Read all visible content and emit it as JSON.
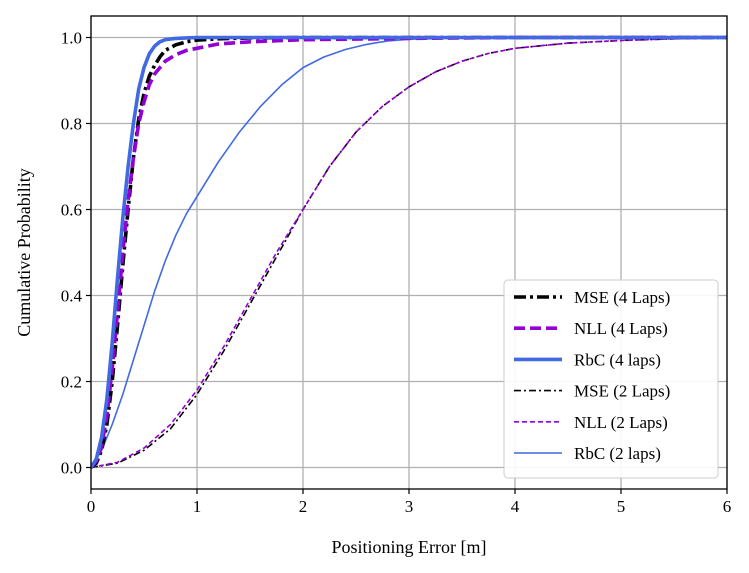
{
  "chart_data": {
    "type": "line",
    "xlabel": "Positioning Error [m]",
    "ylabel": "Cumulative Probability",
    "xlim": [
      0,
      6
    ],
    "ylim": [
      -0.05,
      1.05
    ],
    "x_ticks": [
      "0",
      "1",
      "2",
      "3",
      "4",
      "5",
      "6"
    ],
    "y_ticks": [
      "0.0",
      "0.2",
      "0.4",
      "0.6",
      "0.8",
      "1.0"
    ],
    "x_tick_values": [
      0,
      1,
      2,
      3,
      4,
      5,
      6
    ],
    "y_tick_values": [
      0,
      0.2,
      0.4,
      0.6,
      0.8,
      1.0
    ],
    "grid": true,
    "legend_position": "lower-right",
    "series": [
      {
        "name": "MSE (4 Laps)",
        "color": "#000000",
        "style": "dashdot",
        "weight": "thick",
        "x": [
          0,
          0.05,
          0.1,
          0.15,
          0.2,
          0.25,
          0.3,
          0.35,
          0.4,
          0.45,
          0.5,
          0.55,
          0.6,
          0.65,
          0.7,
          0.8,
          0.9,
          1.0,
          1.2,
          1.5,
          2.0,
          3.0,
          6.0
        ],
        "y": [
          0,
          0.01,
          0.04,
          0.1,
          0.2,
          0.33,
          0.47,
          0.6,
          0.72,
          0.81,
          0.87,
          0.91,
          0.935,
          0.955,
          0.97,
          0.983,
          0.99,
          0.994,
          0.997,
          0.999,
          1.0,
          1.0,
          1.0
        ]
      },
      {
        "name": "NLL (4 Laps)",
        "color": "#9400d3",
        "style": "dashed",
        "weight": "thick",
        "x": [
          0,
          0.05,
          0.1,
          0.15,
          0.2,
          0.25,
          0.3,
          0.35,
          0.4,
          0.45,
          0.5,
          0.55,
          0.6,
          0.65,
          0.7,
          0.8,
          0.9,
          1.0,
          1.2,
          1.5,
          2.0,
          3.0,
          4.0,
          6.0
        ],
        "y": [
          0,
          0.015,
          0.05,
          0.12,
          0.23,
          0.36,
          0.5,
          0.62,
          0.72,
          0.8,
          0.85,
          0.89,
          0.915,
          0.93,
          0.945,
          0.96,
          0.97,
          0.975,
          0.985,
          0.99,
          0.995,
          0.998,
          1.0,
          1.0
        ]
      },
      {
        "name": "RbC (4 laps)",
        "color": "#4169e1",
        "style": "solid",
        "weight": "thick",
        "x": [
          0,
          0.05,
          0.1,
          0.15,
          0.2,
          0.25,
          0.3,
          0.35,
          0.4,
          0.45,
          0.5,
          0.55,
          0.6,
          0.65,
          0.7,
          0.8,
          0.9,
          1.0,
          1.5,
          6.0
        ],
        "y": [
          0,
          0.02,
          0.07,
          0.16,
          0.29,
          0.44,
          0.58,
          0.7,
          0.8,
          0.88,
          0.93,
          0.962,
          0.98,
          0.99,
          0.995,
          0.998,
          0.999,
          1.0,
          1.0,
          1.0
        ]
      },
      {
        "name": "MSE (2 Laps)",
        "color": "#000000",
        "style": "dashdot",
        "weight": "thin",
        "x": [
          0,
          0.25,
          0.5,
          0.75,
          1.0,
          1.25,
          1.5,
          1.75,
          2.0,
          2.25,
          2.5,
          2.75,
          3.0,
          3.25,
          3.5,
          3.75,
          4.0,
          4.5,
          5.0,
          5.5,
          6.0
        ],
        "y": [
          0,
          0.01,
          0.04,
          0.09,
          0.17,
          0.27,
          0.38,
          0.49,
          0.6,
          0.7,
          0.78,
          0.84,
          0.885,
          0.92,
          0.945,
          0.963,
          0.975,
          0.987,
          0.993,
          0.997,
          0.999
        ]
      },
      {
        "name": "NLL (2 Laps)",
        "color": "#9400d3",
        "style": "dashed",
        "weight": "thin",
        "x": [
          0,
          0.25,
          0.5,
          0.75,
          1.0,
          1.25,
          1.5,
          1.75,
          2.0,
          2.25,
          2.5,
          2.75,
          3.0,
          3.25,
          3.5,
          3.75,
          4.0,
          4.5,
          5.0,
          5.5,
          6.0
        ],
        "y": [
          0,
          0.012,
          0.045,
          0.1,
          0.18,
          0.28,
          0.39,
          0.5,
          0.6,
          0.7,
          0.78,
          0.84,
          0.885,
          0.92,
          0.945,
          0.963,
          0.975,
          0.987,
          0.993,
          0.997,
          0.999
        ]
      },
      {
        "name": "RbC (2 laps)",
        "color": "#4169e1",
        "style": "solid",
        "weight": "thin",
        "x": [
          0,
          0.1,
          0.2,
          0.3,
          0.4,
          0.5,
          0.6,
          0.7,
          0.8,
          0.9,
          1.0,
          1.2,
          1.4,
          1.6,
          1.8,
          2.0,
          2.2,
          2.4,
          2.6,
          2.8,
          3.0,
          3.5,
          4.0,
          6.0
        ],
        "y": [
          0,
          0.04,
          0.1,
          0.17,
          0.25,
          0.33,
          0.41,
          0.48,
          0.54,
          0.59,
          0.63,
          0.71,
          0.78,
          0.84,
          0.89,
          0.93,
          0.955,
          0.972,
          0.984,
          0.992,
          0.996,
          0.999,
          1.0,
          1.0
        ]
      }
    ]
  }
}
